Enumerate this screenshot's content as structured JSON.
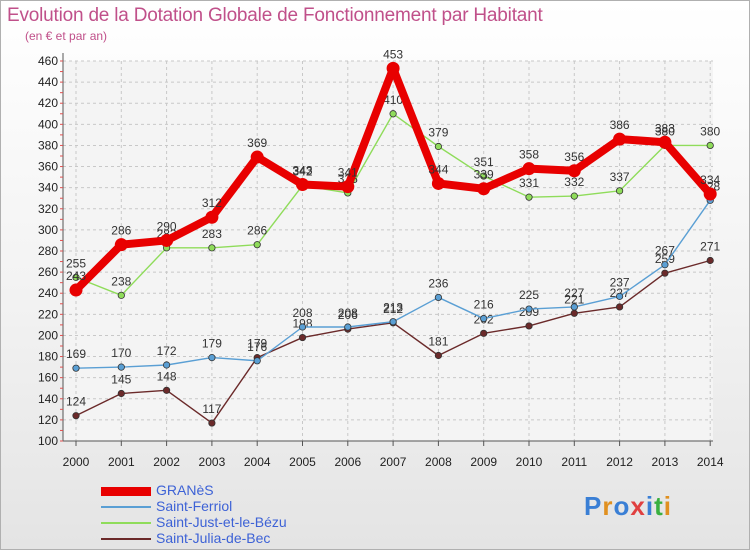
{
  "title": "Evolution de la Dotation Globale de Fonctionnement par Habitant",
  "subtitle": "(en € et par an)",
  "logo": {
    "letters": [
      "P",
      "r",
      "o",
      "x",
      "i",
      "t",
      "i"
    ],
    "colors": [
      "#3a7fd5",
      "#e09020",
      "#3a7fd5",
      "#e04040",
      "#3a7fd5",
      "#3ab040",
      "#e09020"
    ]
  },
  "chart_data": {
    "type": "line",
    "title": "Evolution de la Dotation Globale de Fonctionnement par Habitant",
    "ylabel": "(en € et par an)",
    "x": [
      "2000",
      "2001",
      "2002",
      "2003",
      "2004",
      "2005",
      "2006",
      "2007",
      "2008",
      "2009",
      "2010",
      "2011",
      "2012",
      "2013",
      "2014"
    ],
    "ylim": [
      100,
      460
    ],
    "yticks": [
      100,
      120,
      140,
      160,
      180,
      200,
      220,
      240,
      260,
      280,
      300,
      320,
      340,
      360,
      380,
      400,
      420,
      440,
      460
    ],
    "grid": true,
    "series": [
      {
        "name": "Saint-Julia-de-Bec",
        "color": "#6b2a2a",
        "values": [
          124,
          145,
          148,
          117,
          179,
          198,
          206,
          212,
          181,
          202,
          209,
          221,
          227,
          259,
          271
        ]
      },
      {
        "name": "Saint-Just-et-le-Bézu",
        "color": "#8fdc5a",
        "values": [
          255,
          238,
          283,
          283,
          286,
          342,
          335,
          410,
          379,
          351,
          331,
          332,
          337,
          380,
          380
        ]
      },
      {
        "name": "Saint-Ferriol",
        "color": "#5a9fd4",
        "values": [
          169,
          170,
          172,
          179,
          176,
          208,
          208,
          213,
          236,
          216,
          225,
          227,
          237,
          267,
          328
        ]
      },
      {
        "name": "GRANèS",
        "color": "#e80000",
        "values": [
          243,
          286,
          290,
          312,
          369,
          343,
          341,
          453,
          344,
          339,
          358,
          356,
          386,
          383,
          334
        ]
      }
    ],
    "legend_order": [
      "GRANèS",
      "Saint-Ferriol",
      "Saint-Just-et-le-Bézu",
      "Saint-Julia-de-Bec"
    ]
  }
}
